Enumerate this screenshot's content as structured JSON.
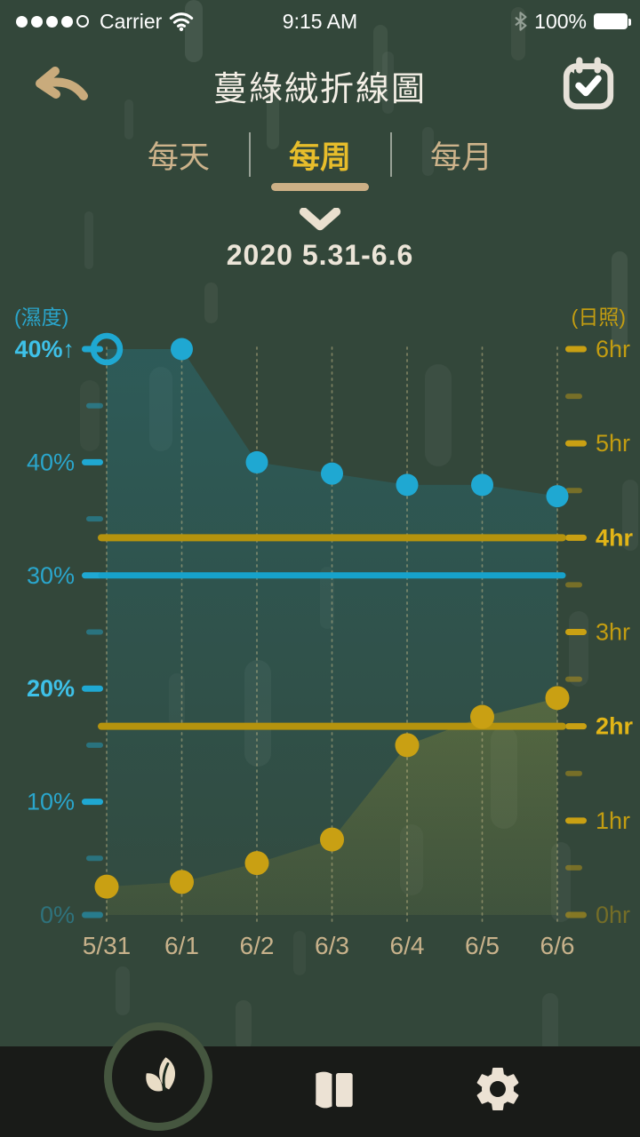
{
  "status_bar": {
    "signal_dots_filled": 4,
    "signal_dots_total": 5,
    "carrier": "Carrier",
    "time": "9:15 AM",
    "battery_percent": "100%"
  },
  "header": {
    "title": "蔓綠絨折線圖"
  },
  "tabs": [
    {
      "label": "每天",
      "active": false
    },
    {
      "label": "每周",
      "active": true
    },
    {
      "label": "每月",
      "active": false
    }
  ],
  "period": {
    "label": "2020 5.31-6.6"
  },
  "chart_data": {
    "type": "line",
    "x": [
      "5/31",
      "6/1",
      "6/2",
      "6/3",
      "6/4",
      "6/5",
      "6/6"
    ],
    "series": [
      {
        "name": "濕度",
        "unit": "%",
        "axis": "left",
        "color": "#1fa8d2",
        "values": [
          50,
          50,
          40,
          39,
          38,
          38,
          37
        ],
        "area": true,
        "note": "First two points are pinned at the 40%↑ top line (above 40%); first point (5/31) is highlighted as an open ring."
      },
      {
        "name": "日照",
        "unit": "hr",
        "axis": "right",
        "color": "#c9a013",
        "values": [
          0.3,
          0.35,
          0.55,
          0.8,
          1.8,
          2.1,
          2.3
        ],
        "area": true
      }
    ],
    "left_axis": {
      "title": "(濕度)",
      "range": [
        0,
        50
      ],
      "tick_values": [
        0,
        10,
        20,
        30,
        40,
        50
      ],
      "tick_labels": [
        "0%",
        "10%",
        "20%",
        "30%",
        "40%",
        "40%↑"
      ],
      "bold_labels": [
        "20%",
        "40%↑"
      ],
      "faded_labels": [
        "0%"
      ],
      "minor_ticks": "midpoints"
    },
    "right_axis": {
      "title": "(日照)",
      "range": [
        0,
        6
      ],
      "tick_values": [
        0,
        1,
        2,
        3,
        4,
        5,
        6
      ],
      "tick_labels": [
        "0hr",
        "1hr",
        "2hr",
        "3hr",
        "4hr",
        "5hr",
        "6hr"
      ],
      "bold_labels": [
        "2hr",
        "4hr"
      ],
      "faded_labels": [
        "0hr"
      ],
      "minor_ticks": "midpoints"
    },
    "reference_lines": [
      {
        "axis": "left",
        "value": 30,
        "color": "#17a2cb"
      },
      {
        "axis": "right",
        "value": 4,
        "color": "#b5930e"
      },
      {
        "axis": "right",
        "value": 2,
        "color": "#b5930e"
      }
    ],
    "grid": {
      "vertical_dotted_per_date": true,
      "horizontal": false
    },
    "legend": "none"
  },
  "nav": [
    {
      "name": "plant-chart",
      "icon": "leaf",
      "active": true
    },
    {
      "name": "log",
      "icon": "open-book",
      "active": false
    },
    {
      "name": "settings",
      "icon": "gear",
      "active": false
    }
  ],
  "colors": {
    "background": "#33473a",
    "navbar": "#191b18",
    "nav_ring": "#45563f",
    "cream": "#e9ddc6",
    "tab_active": "#e7bd2b",
    "tab_inactive": "#cdb38b",
    "underline": "#cdb086",
    "humidity": "#1fa8d2",
    "humidity_label": "#2aa6cc",
    "humidity_label_bold": "#3ec1e8",
    "sunlight": "#c9a013",
    "sunlight_label": "#c39d11",
    "sunlight_label_bold": "#e2b517",
    "x_label": "#c8b28b",
    "grid_dots": "rgba(216,199,146,0.45)",
    "title_text": "#f4efe6",
    "date_text": "#ece5d8",
    "status_text": "#ffffff"
  }
}
